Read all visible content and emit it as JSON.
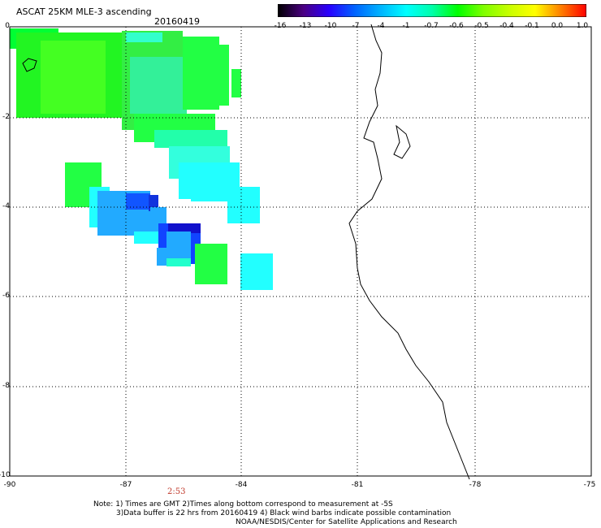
{
  "title": "ASCAT 25KM MLE-3 ascending",
  "date": "20160419",
  "colorbar": {
    "labels": [
      "-16",
      "-13",
      "-10",
      "-7",
      "-4",
      "-1",
      "-0.7",
      "-0.6",
      "-0.5",
      "-0.4",
      "-0.1",
      "0.0",
      "1.0"
    ],
    "colors": [
      "#000000",
      "#4b0082",
      "#2800ff",
      "#0064ff",
      "#00b4ff",
      "#00ffff",
      "#00ffaa",
      "#00ff00",
      "#7fff00",
      "#c8ff00",
      "#ffff00",
      "#ff8000",
      "#ff0000"
    ]
  },
  "map": {
    "lat_labels": [
      "0",
      "-2",
      "-4",
      "-6",
      "-8",
      "-10"
    ],
    "lon_labels": [
      "-90",
      "-87",
      "-84",
      "-81",
      "-78",
      "-75"
    ]
  },
  "time_label": "2:53",
  "notes": [
    "Note: 1) Times are GMT 2)Times along bottom correspond to measurement at -5S",
    "3)Data buffer is 22 hrs from 20160419 4) Black wind barbs indicate possible contamination",
    "NOAA/NESDIS/Center for Satellite Applications and Research"
  ]
}
